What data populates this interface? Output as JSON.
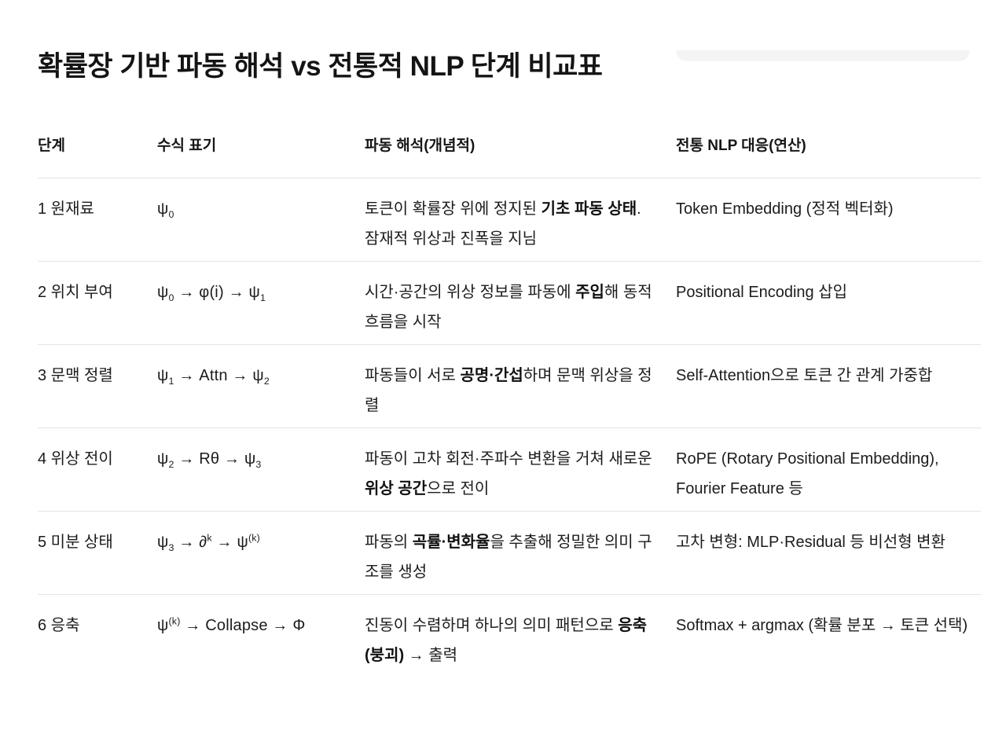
{
  "page": {
    "title": "확률장 기반 파동 해석 vs 전통적 NLP 단계 비교표"
  },
  "colors": {
    "text": "#1c1c1c",
    "divider": "#e4e4e4",
    "pill": "#f4f4f4",
    "bg": "#ffffff"
  },
  "table": {
    "columns": [
      "단계",
      "수식 표기",
      "파동 해석(개념적)",
      "전통 NLP 대응(연산)"
    ],
    "rows": [
      {
        "stage": "1 원재료",
        "formula": "ψ_0_",
        "wave": "토큰이 확률장 위에 정지된 **기초 파동 상태**. 잠재적 위상과 진폭을 지님",
        "nlp": "Token Embedding (정적 벡터화)"
      },
      {
        "stage": "2 위치 부여",
        "formula": "ψ_0_ → φ(i) → ψ_1_",
        "wave": "시간·공간의 위상 정보를 파동에 **주입**해 동적 흐름을 시작",
        "nlp": "Positional Encoding 삽입"
      },
      {
        "stage": "3 문맥 정렬",
        "formula": "ψ_1_ → Attn → ψ_2_",
        "wave": "파동들이 서로 **공명·간섭**하며 문맥 위상을 정렬",
        "nlp": "Self-Attention으로 토큰 간 관계 가중합"
      },
      {
        "stage": "4 위상 전이",
        "formula": "ψ_2_ → Rθ → ψ_3_",
        "wave": "파동이 고차 회전·주파수 변환을 거쳐 새로운 **위상 공간**으로 전이",
        "nlp": "RoPE (Rotary Positional Embedding), Fourier Feature 등"
      },
      {
        "stage": "5 미분 상태",
        "formula": "ψ_3_ → ∂^k^ → ψ^(k)^",
        "wave": "파동의 **곡률·변화율**을 추출해 정밀한 의미 구조를 생성",
        "nlp": "고차 변형: MLP·Residual 등 비선형 변환"
      },
      {
        "stage": "6 응축",
        "formula": "ψ^(k)^ → Collapse → Φ",
        "wave": "진동이 수렴하며 하나의 의미 패턴으로 **응축(붕괴)** → 출력",
        "nlp": "Softmax + argmax (확률 분포 → 토큰 선택)"
      }
    ]
  }
}
